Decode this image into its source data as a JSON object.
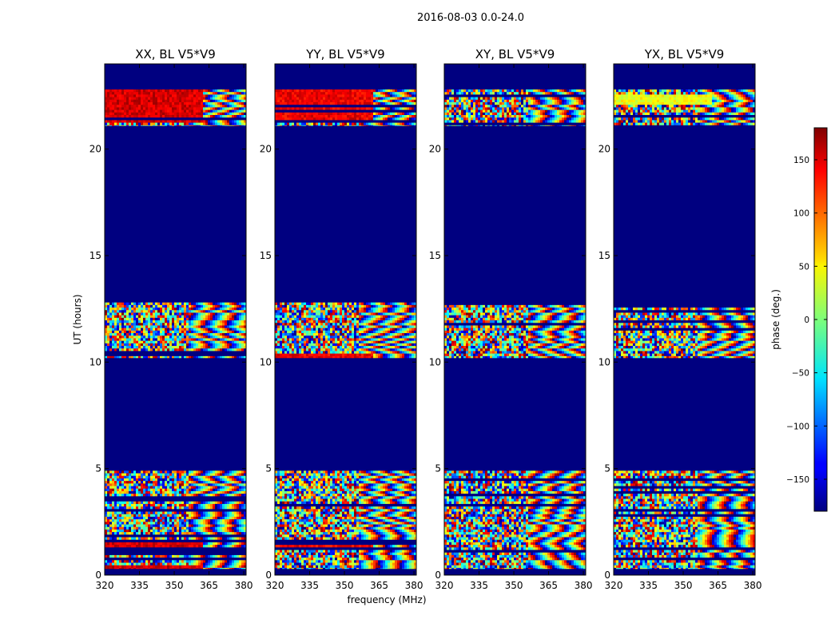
{
  "chart_data": {
    "type": "heatmap",
    "suptitle": "2016-08-03 0.0-24.0",
    "xlabel": "frequency (MHz)",
    "ylabel": "UT (hours)",
    "colorbar_label": "phase (deg.)",
    "xlim": [
      320,
      381
    ],
    "ylim": [
      0,
      24
    ],
    "x_ticks": [
      320,
      335,
      350,
      365,
      380
    ],
    "y_ticks": [
      0,
      5,
      10,
      15,
      20
    ],
    "clim": [
      -180,
      180
    ],
    "colorbar_ticks": [
      150,
      100,
      50,
      0,
      -50,
      -100,
      -150
    ],
    "colormap": "jet",
    "background_value": -180,
    "observed_hour_ranges": [
      [
        0.3,
        4.9
      ],
      [
        10.2,
        12.8
      ],
      [
        21.1,
        22.8
      ]
    ],
    "panels": [
      {
        "title": "XX, BL V5*V9",
        "stable_phase_deg": 150,
        "stable_bands": [
          [
            21.3,
            22.8
          ],
          [
            1.3,
            1.55
          ],
          [
            0.3,
            0.45
          ]
        ]
      },
      {
        "title": "YY, BL V5*V9",
        "stable_phase_deg": 140,
        "stable_bands": [
          [
            21.3,
            22.8
          ],
          [
            1.3,
            1.55
          ],
          [
            10.2,
            10.35
          ]
        ]
      },
      {
        "title": "XY, BL V5*V9",
        "stable_phase_deg": 0,
        "stable_bands": []
      },
      {
        "title": "YX, BL V5*V9",
        "stable_phase_deg": 40,
        "stable_bands": [
          [
            22.1,
            22.6
          ]
        ]
      }
    ]
  }
}
